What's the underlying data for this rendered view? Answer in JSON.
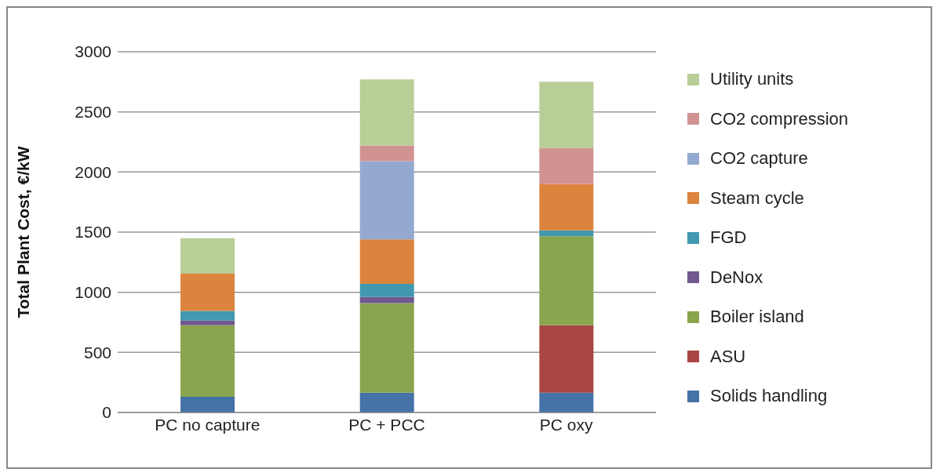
{
  "chart_data": {
    "type": "bar",
    "stacked": true,
    "ylabel": "Total Plant Cost, €/kW",
    "categories": [
      "PC no capture",
      "PC + PCC",
      "PC oxy"
    ],
    "ylim": [
      0,
      3000
    ],
    "yticks": [
      0,
      500,
      1000,
      1500,
      2000,
      2500,
      3000
    ],
    "grid": "y",
    "legend": "right",
    "series": [
      {
        "name": "Solids handling",
        "color": "#4572a7",
        "values": [
          130,
          165,
          165
        ]
      },
      {
        "name": "ASU",
        "color": "#aa4643",
        "values": [
          0,
          0,
          560
        ]
      },
      {
        "name": "Boiler island",
        "color": "#89a54e",
        "values": [
          595,
          745,
          740
        ]
      },
      {
        "name": "DeNox",
        "color": "#71588f",
        "values": [
          40,
          50,
          0
        ]
      },
      {
        "name": "FGD",
        "color": "#4198af",
        "values": [
          80,
          110,
          50
        ]
      },
      {
        "name": "Steam cycle",
        "color": "#db843d",
        "values": [
          310,
          370,
          385
        ]
      },
      {
        "name": "CO2 capture",
        "color": "#93a9cf",
        "values": [
          0,
          650,
          0
        ]
      },
      {
        "name": "CO2 compression",
        "color": "#d19392",
        "values": [
          0,
          130,
          300
        ]
      },
      {
        "name": "Utility units",
        "color": "#b9cd96",
        "values": [
          295,
          550,
          550
        ]
      }
    ]
  }
}
